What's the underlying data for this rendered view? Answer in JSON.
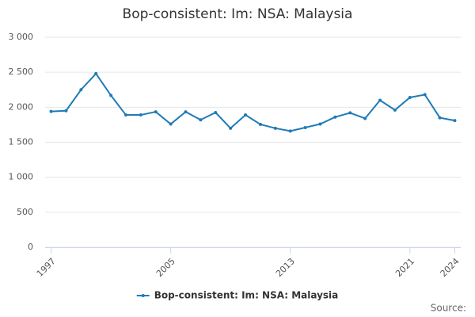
{
  "chart_data": {
    "type": "line",
    "title": "Bop-consistent: Im: NSA: Malaysia",
    "x": [
      1997,
      1998,
      1999,
      2000,
      2001,
      2002,
      2003,
      2004,
      2005,
      2006,
      2007,
      2008,
      2009,
      2010,
      2011,
      2012,
      2013,
      2014,
      2015,
      2016,
      2017,
      2018,
      2019,
      2020,
      2021,
      2022,
      2023,
      2024
    ],
    "series": [
      {
        "name": "Bop-consistent: Im: NSA: Malaysia",
        "color": "#1f7bb6",
        "values": [
          1940,
          1950,
          2250,
          2480,
          2170,
          1890,
          1890,
          1935,
          1760,
          1935,
          1820,
          1925,
          1700,
          1890,
          1755,
          1700,
          1660,
          1710,
          1760,
          1860,
          1920,
          1840,
          2100,
          1960,
          2140,
          2180,
          1850,
          1810
        ]
      }
    ],
    "xlim": [
      1996.6,
      2024.4
    ],
    "xticks": [
      1997,
      2005,
      2013,
      2021,
      2024
    ],
    "ylim": [
      0,
      3000
    ],
    "yticks": [
      0,
      500,
      {
        "value": 1000,
        "label": "1 000"
      },
      {
        "value": 1500,
        "label": "1 500"
      },
      {
        "value": 2000,
        "label": "2 000"
      },
      {
        "value": 2500,
        "label": "2 500"
      },
      {
        "value": 3000,
        "label": "3 000"
      }
    ],
    "grid": true,
    "legend": "bottom",
    "source": "Source:"
  }
}
